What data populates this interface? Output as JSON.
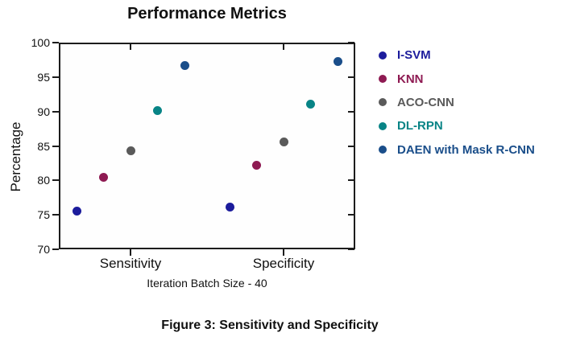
{
  "title": "Performance Metrics",
  "y_axis": {
    "label": "Percentage",
    "ticks": [
      70,
      75,
      80,
      85,
      90,
      95,
      100
    ]
  },
  "x_axis": {
    "label": "Iteration Batch Size - 40",
    "categories": [
      "Sensitivity",
      "Specificity"
    ]
  },
  "caption": "Figure 3: Sensitivity and Specificity",
  "chart_data": {
    "type": "scatter",
    "title": "Performance Metrics",
    "xlabel": "Iteration Batch Size - 40",
    "ylabel": "Percentage",
    "ylim": [
      70,
      100
    ],
    "grid": false,
    "legend_position": "right",
    "categories": [
      "Sensitivity",
      "Specificity"
    ],
    "series": [
      {
        "name": "I-SVM",
        "color": "#1c1c9c",
        "values": [
          75.6,
          76.1
        ]
      },
      {
        "name": "KNN",
        "color": "#8e1a52",
        "values": [
          80.4,
          82.2
        ]
      },
      {
        "name": "ACO-CNN",
        "color": "#5a5a5a",
        "values": [
          84.3,
          85.6
        ]
      },
      {
        "name": "DL-RPN",
        "color": "#088486",
        "values": [
          90.1,
          91.1
        ]
      },
      {
        "name": "DAEN with Mask R-CNN",
        "color": "#1a4e8a",
        "values": [
          96.7,
          97.3
        ]
      }
    ]
  }
}
